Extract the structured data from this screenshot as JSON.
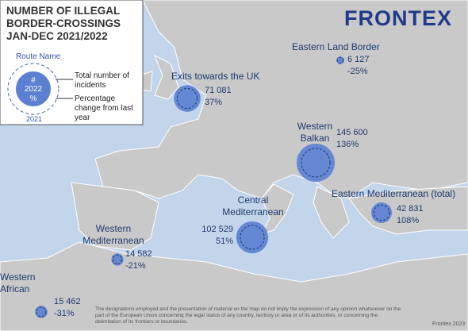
{
  "header": {
    "title": "NUMBER OF ILLEGAL BORDER-CROSSINGS JAN-DEC 2021/2022",
    "logo": "FRONTEX"
  },
  "legend": {
    "route_name": "Route Name",
    "count": "#",
    "year_current": "2022",
    "percent": "%",
    "year_previous": "2021",
    "total_label": "Total number of incidents",
    "change_label": "Percentage change from last year"
  },
  "routes": [
    {
      "name": "Eastern Land Border",
      "value": 6127,
      "value_label": "6 127",
      "change": "-25%"
    },
    {
      "name": "Exits towards the UK",
      "value": 71081,
      "value_label": "71 081",
      "change": "37%"
    },
    {
      "name": "Western Balkan",
      "value": 145600,
      "value_label": "145 600",
      "change": "136%"
    },
    {
      "name": "Eastern Mediterranean (total)",
      "value": 42831,
      "value_label": "42 831",
      "change": "108%"
    },
    {
      "name": "Central Mediterranean",
      "value": 102529,
      "value_label": "102 529",
      "change": "51%"
    },
    {
      "name": "Western Mediterranean",
      "value": 14582,
      "value_label": "14 582",
      "change": "-21%"
    },
    {
      "name": "Western African",
      "value": 15462,
      "value_label": "15 462",
      "change": "-31%"
    }
  ],
  "footer": {
    "disclaimer": "The designations employed and the presentation of material on the map do not imply the expression of any opinion whatsoever on the part of the European Union concerning the legal status of any country, territory or area or of its authorities, or concerning the delimitation of its frontiers or boundaries.",
    "credit": "Frontex 2023"
  }
}
